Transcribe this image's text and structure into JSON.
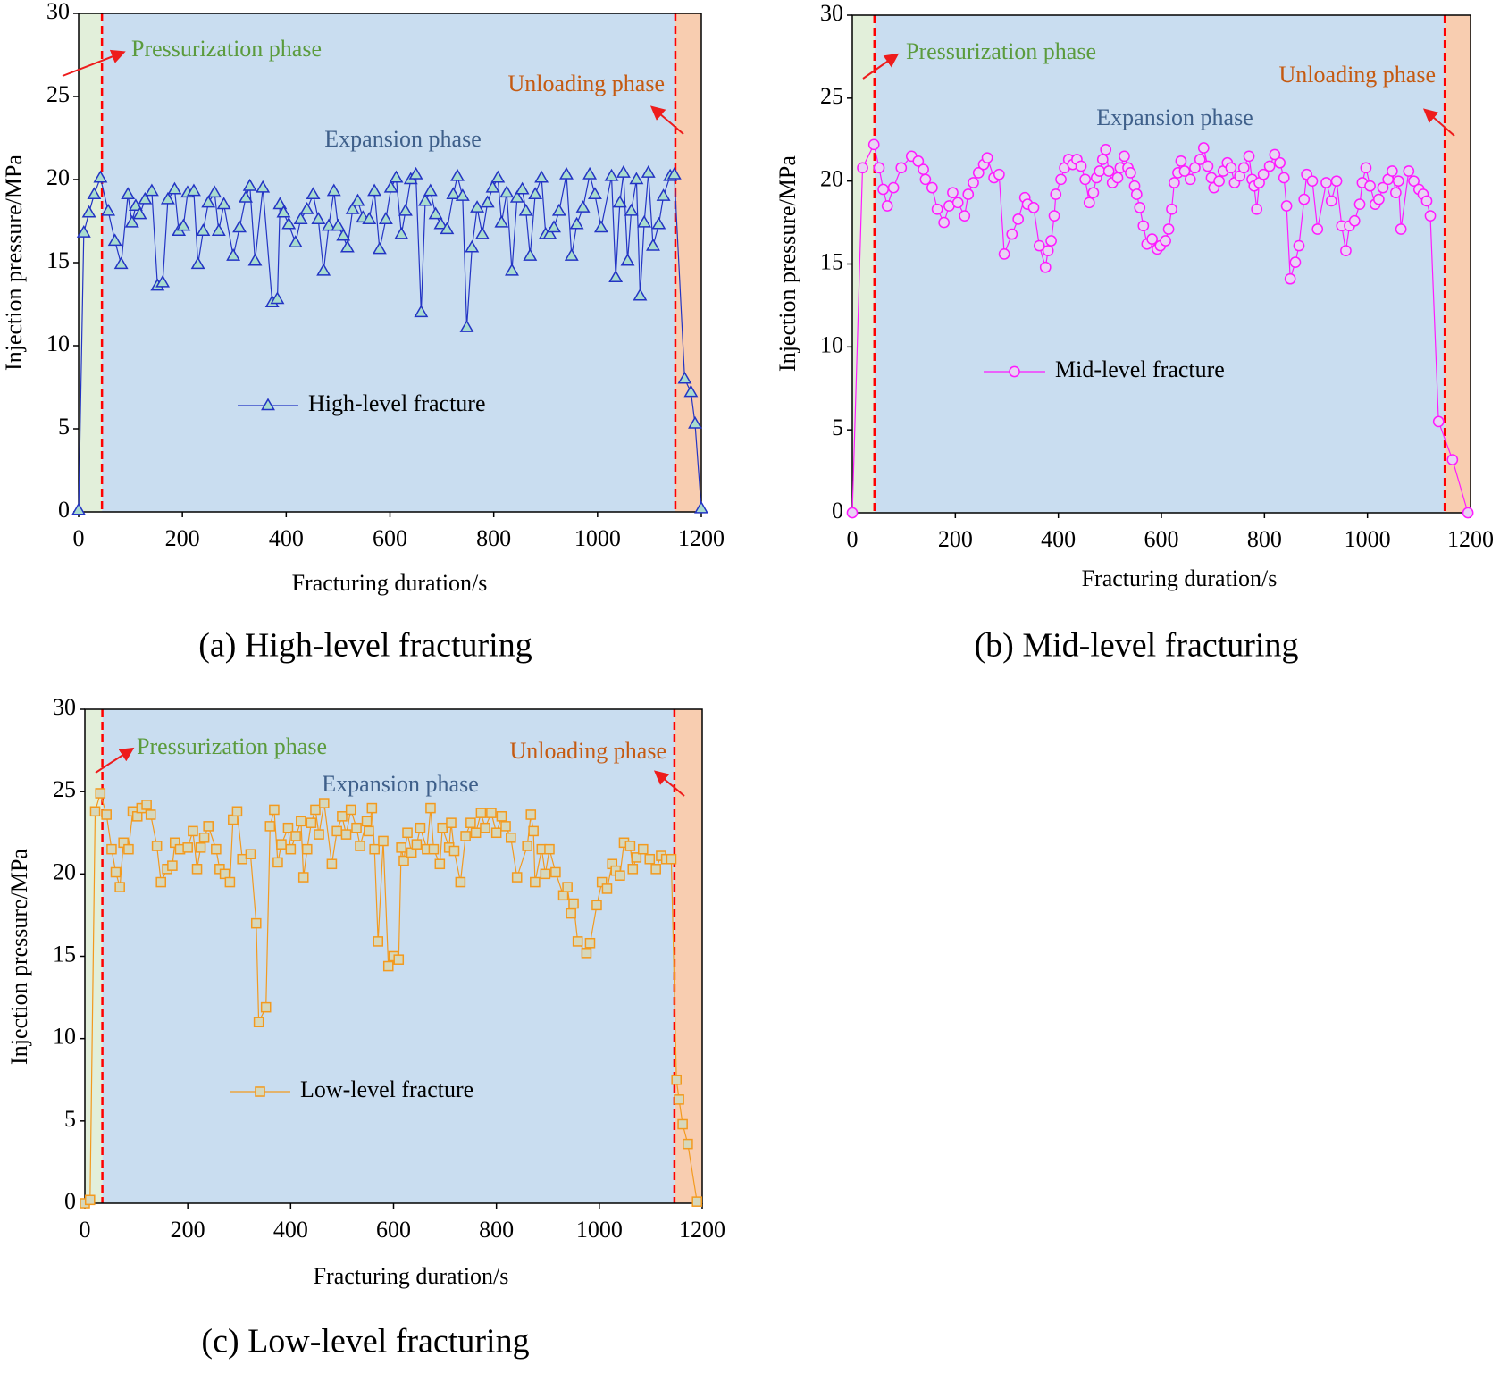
{
  "chart_data": [
    {
      "type": "line",
      "title": "(a) High-level fracturing",
      "xlabel": "Fracturing duration/s",
      "ylabel": "Injection pressure/MPa",
      "xlim": [
        0,
        1200
      ],
      "ylim": [
        0,
        30
      ],
      "xticks": [
        0,
        200,
        400,
        600,
        800,
        1000,
        1200
      ],
      "yticks": [
        0,
        5,
        10,
        15,
        20,
        25,
        30
      ],
      "boundary_color": "#ff0000",
      "phases": [
        {
          "label": "Pressurization phase",
          "start": 0,
          "end": 45,
          "fill": "#e2efda",
          "text_color": "#5b9b3d"
        },
        {
          "label": "Expansion phase",
          "start": 45,
          "end": 1150,
          "fill": "#c9ddf0",
          "text_color": "#3e5f8a"
        },
        {
          "label": "Unloading phase",
          "start": 1150,
          "end": 1200,
          "fill": "#f8cdb0",
          "text_color": "#c55a11"
        }
      ],
      "x": [
        0,
        10,
        20,
        30,
        42,
        57,
        70,
        82,
        95,
        103,
        110,
        118,
        128,
        141,
        152,
        162,
        172,
        185,
        193,
        202,
        210,
        222,
        230,
        240,
        250,
        262,
        270,
        280,
        298,
        310,
        322,
        330,
        340,
        355,
        373,
        383,
        388,
        395,
        405,
        418,
        428,
        440,
        452,
        462,
        472,
        482,
        492,
        500,
        510,
        518,
        528,
        538,
        548,
        560,
        570,
        580,
        592,
        602,
        612,
        622,
        630,
        640,
        650,
        660,
        668,
        678,
        688,
        698,
        710,
        722,
        730,
        740,
        748,
        758,
        768,
        778,
        788,
        798,
        808,
        815,
        825,
        835,
        845,
        855,
        862,
        870,
        880,
        892,
        900,
        908,
        916,
        926,
        940,
        950,
        960,
        972,
        985,
        995,
        1007,
        1027,
        1035,
        1043,
        1050,
        1058,
        1065,
        1075,
        1082,
        1090,
        1098,
        1107,
        1118,
        1127,
        1140,
        1148,
        1168,
        1180,
        1188,
        1200
      ],
      "series": [
        {
          "name": "High-level fracture",
          "color": "#2334c4",
          "marker": "triangle",
          "marker_fill": "#a9dccf",
          "values": [
            0.1,
            16.8,
            18.0,
            19.1,
            20.1,
            18.1,
            16.3,
            14.9,
            19.1,
            17.4,
            18.4,
            17.9,
            18.8,
            19.3,
            13.6,
            13.8,
            18.8,
            19.4,
            16.9,
            17.2,
            19.2,
            19.3,
            14.9,
            16.9,
            18.6,
            19.2,
            16.9,
            18.5,
            15.4,
            17.1,
            18.9,
            19.6,
            15.1,
            19.5,
            12.6,
            12.8,
            18.5,
            18.0,
            17.3,
            16.2,
            17.6,
            18.2,
            19.1,
            17.6,
            14.5,
            17.2,
            19.3,
            17.2,
            16.6,
            15.9,
            18.2,
            18.7,
            17.7,
            17.6,
            19.3,
            15.8,
            17.6,
            19.5,
            20.1,
            16.7,
            18.1,
            20.0,
            20.3,
            12.0,
            18.7,
            19.3,
            17.9,
            17.3,
            17.0,
            19.1,
            20.2,
            19.0,
            11.1,
            15.9,
            18.3,
            16.7,
            18.6,
            19.5,
            20.1,
            17.4,
            19.2,
            14.5,
            18.9,
            19.4,
            18.1,
            15.4,
            19.1,
            20.1,
            16.7,
            16.7,
            17.1,
            18.1,
            20.3,
            15.4,
            17.3,
            18.3,
            20.3,
            19.1,
            17.1,
            20.2,
            14.1,
            18.6,
            20.4,
            15.1,
            18.1,
            20.0,
            13.0,
            17.4,
            20.4,
            16.0,
            17.3,
            19.0,
            20.2,
            20.3,
            8.0,
            7.2,
            5.3,
            0.2
          ]
        }
      ]
    },
    {
      "type": "line",
      "title": "(b) Mid-level fracturing",
      "xlabel": "Fracturing duration/s",
      "ylabel": "Injection pressure/MPa",
      "xlim": [
        0,
        1200
      ],
      "ylim": [
        0,
        30
      ],
      "xticks": [
        0,
        200,
        400,
        600,
        800,
        1000,
        1200
      ],
      "yticks": [
        0,
        5,
        10,
        15,
        20,
        25,
        30
      ],
      "boundary_color": "#ff0000",
      "phases": [
        {
          "label": "Pressurization phase",
          "start": 0,
          "end": 43,
          "fill": "#e2efda",
          "text_color": "#5b9b3d"
        },
        {
          "label": "Expansion phase",
          "start": 43,
          "end": 1150,
          "fill": "#c9ddf0",
          "text_color": "#3e5f8a"
        },
        {
          "label": "Unloading phase",
          "start": 1150,
          "end": 1200,
          "fill": "#f8cdb0",
          "text_color": "#c55a11"
        }
      ],
      "x": [
        0,
        20,
        42,
        52,
        60,
        68,
        80,
        95,
        115,
        128,
        138,
        142,
        155,
        165,
        178,
        188,
        195,
        205,
        218,
        225,
        235,
        245,
        255,
        262,
        275,
        285,
        295,
        310,
        322,
        335,
        340,
        352,
        363,
        375,
        380,
        386,
        392,
        395,
        405,
        412,
        420,
        428,
        436,
        444,
        452,
        460,
        468,
        474,
        480,
        486,
        492,
        498,
        505,
        515,
        520,
        528,
        535,
        540,
        548,
        552,
        558,
        565,
        572,
        582,
        592,
        598,
        608,
        614,
        620,
        625,
        632,
        638,
        645,
        656,
        665,
        675,
        682,
        690,
        697,
        702,
        712,
        720,
        728,
        735,
        742,
        752,
        760,
        770,
        776,
        780,
        785,
        790,
        798,
        810,
        820,
        830,
        838,
        843,
        850,
        860,
        867,
        877,
        882,
        893,
        903,
        920,
        930,
        940,
        950,
        958,
        965,
        975,
        985,
        990,
        997,
        1005,
        1015,
        1022,
        1030,
        1040,
        1048,
        1055,
        1060,
        1065,
        1080,
        1090,
        1100,
        1108,
        1115,
        1122,
        1138,
        1165,
        1195
      ],
      "series": [
        {
          "name": "Mid-level fracture",
          "color": "#ff1aff",
          "marker": "circle",
          "marker_fill": "#e8d4f4",
          "values": [
            0,
            20.8,
            22.2,
            20.8,
            19.5,
            18.5,
            19.6,
            20.8,
            21.5,
            21.2,
            20.7,
            20.1,
            19.6,
            18.3,
            17.5,
            18.5,
            19.3,
            18.7,
            17.9,
            19.2,
            19.9,
            20.5,
            21.0,
            21.4,
            20.2,
            20.4,
            15.6,
            16.8,
            17.7,
            19.0,
            18.6,
            18.4,
            16.1,
            14.8,
            15.8,
            16.4,
            17.9,
            19.2,
            20.1,
            20.8,
            21.3,
            21.0,
            21.3,
            20.9,
            20.1,
            18.7,
            19.3,
            20.2,
            20.6,
            21.3,
            21.9,
            20.6,
            19.9,
            20.2,
            20.8,
            21.5,
            20.8,
            20.5,
            19.7,
            19.2,
            18.4,
            17.3,
            16.2,
            16.5,
            15.9,
            16.1,
            16.4,
            17.1,
            18.3,
            19.9,
            20.5,
            21.2,
            20.6,
            20.1,
            20.8,
            21.3,
            22.0,
            20.9,
            20.2,
            19.6,
            20.0,
            20.6,
            21.1,
            20.8,
            19.9,
            20.3,
            20.8,
            21.5,
            20.1,
            19.7,
            18.3,
            19.9,
            20.4,
            20.9,
            21.6,
            21.1,
            20.2,
            18.5,
            14.1,
            15.1,
            16.1,
            18.9,
            20.4,
            20.0,
            17.1,
            19.9,
            18.8,
            20.0,
            17.3,
            15.8,
            17.3,
            17.6,
            18.6,
            19.9,
            20.8,
            19.7,
            18.6,
            18.9,
            19.6,
            20.1,
            20.6,
            19.3,
            20.0,
            17.1,
            20.6,
            20.0,
            19.5,
            19.2,
            18.8,
            17.9,
            5.5,
            3.2,
            0
          ]
        }
      ]
    },
    {
      "type": "line",
      "title": "(c) Low-level fracturing",
      "xlabel": "Fracturing duration/s",
      "ylabel": "Injection pressure/MPa",
      "xlim": [
        0,
        1200
      ],
      "ylim": [
        0,
        30
      ],
      "xticks": [
        0,
        200,
        400,
        600,
        800,
        1000,
        1200
      ],
      "yticks": [
        0,
        5,
        10,
        15,
        20,
        25,
        30
      ],
      "boundary_color": "#ff0000",
      "phases": [
        {
          "label": "Pressurization phase",
          "start": 0,
          "end": 34,
          "fill": "#e2efda",
          "text_color": "#5b9b3d"
        },
        {
          "label": "Expansion phase",
          "start": 34,
          "end": 1146,
          "fill": "#c9ddf0",
          "text_color": "#3e5f8a"
        },
        {
          "label": "Unloading phase",
          "start": 1146,
          "end": 1200,
          "fill": "#f8cdb0",
          "text_color": "#c55a11"
        }
      ],
      "x": [
        0,
        10,
        20,
        30,
        42,
        52,
        60,
        68,
        75,
        85,
        93,
        102,
        110,
        120,
        128,
        140,
        148,
        160,
        170,
        175,
        185,
        200,
        210,
        218,
        225,
        232,
        240,
        255,
        262,
        272,
        282,
        288,
        296,
        306,
        322,
        333,
        338,
        352,
        360,
        368,
        375,
        382,
        395,
        400,
        410,
        420,
        425,
        432,
        440,
        448,
        455,
        465,
        480,
        490,
        500,
        508,
        517,
        528,
        535,
        548,
        552,
        558,
        563,
        570,
        580,
        590,
        600,
        610,
        615,
        620,
        627,
        635,
        645,
        652,
        665,
        672,
        678,
        690,
        695,
        708,
        712,
        718,
        730,
        740,
        750,
        760,
        770,
        778,
        790,
        800,
        810,
        818,
        828,
        840,
        860,
        867,
        872,
        875,
        888,
        895,
        903,
        915,
        930,
        938,
        945,
        950,
        958,
        975,
        982,
        995,
        1005,
        1015,
        1025,
        1032,
        1040,
        1048,
        1060,
        1065,
        1072,
        1085,
        1098,
        1110,
        1120,
        1130,
        1140,
        1150,
        1155,
        1162,
        1172,
        1190
      ],
      "series": [
        {
          "name": "Low-level fracture",
          "color": "#f39a1e",
          "marker": "square",
          "marker_fill": "#d6d8bc",
          "values": [
            0,
            0.2,
            23.8,
            24.9,
            23.6,
            21.5,
            20.1,
            19.2,
            21.9,
            21.5,
            23.8,
            23.5,
            24.0,
            24.2,
            23.6,
            21.7,
            19.5,
            20.3,
            20.5,
            21.9,
            21.5,
            21.6,
            22.6,
            20.3,
            21.6,
            22.2,
            22.9,
            21.5,
            20.3,
            20.0,
            19.5,
            23.3,
            23.8,
            20.9,
            21.2,
            17.0,
            11.0,
            11.9,
            22.9,
            23.9,
            20.7,
            21.8,
            22.8,
            21.5,
            22.3,
            23.2,
            19.8,
            21.5,
            23.1,
            23.9,
            22.4,
            24.3,
            20.6,
            22.6,
            23.5,
            22.4,
            23.9,
            22.8,
            21.7,
            23.2,
            22.6,
            24.0,
            21.5,
            15.9,
            22.0,
            14.4,
            15.0,
            14.8,
            21.6,
            20.8,
            22.5,
            21.3,
            21.8,
            22.8,
            21.5,
            24.0,
            21.5,
            20.6,
            22.8,
            21.6,
            23.1,
            21.4,
            19.5,
            22.3,
            23.1,
            22.5,
            23.7,
            22.8,
            23.7,
            22.5,
            23.5,
            22.9,
            22.2,
            19.8,
            21.7,
            23.6,
            22.6,
            19.5,
            21.5,
            20.0,
            21.5,
            20.1,
            18.7,
            19.2,
            17.6,
            18.2,
            15.9,
            15.2,
            15.8,
            18.1,
            19.5,
            19.1,
            20.6,
            20.2,
            19.9,
            21.9,
            21.7,
            20.3,
            21.0,
            21.5,
            20.9,
            20.3,
            21.1,
            20.9,
            20.9,
            7.5,
            6.3,
            4.8,
            3.6,
            0.1
          ]
        }
      ]
    }
  ]
}
